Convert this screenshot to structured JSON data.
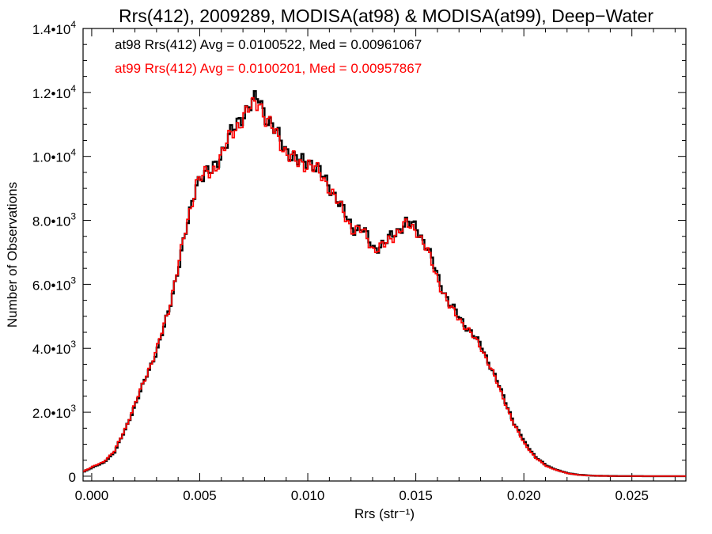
{
  "chart_data": {
    "type": "line",
    "title": "Rrs(412), 2009289, MODISA(at98) & MODISA(at99), Deep−Water",
    "xlabel": "Rrs (str⁻¹)",
    "ylabel": "Number of Observations",
    "xlim": [
      -0.0004,
      0.0275
    ],
    "ylim": [
      -150,
      14000
    ],
    "x_ticks": [
      {
        "value": 0.0,
        "label": "0.000"
      },
      {
        "value": 0.005,
        "label": "0.005"
      },
      {
        "value": 0.01,
        "label": "0.010"
      },
      {
        "value": 0.015,
        "label": "0.015"
      },
      {
        "value": 0.02,
        "label": "0.020"
      },
      {
        "value": 0.025,
        "label": "0.025"
      }
    ],
    "y_ticks": [
      {
        "value": 0,
        "label": "0"
      },
      {
        "value": 2000,
        "label": "2.0•103"
      },
      {
        "value": 4000,
        "label": "4.0•103"
      },
      {
        "value": 6000,
        "label": "6.0•103"
      },
      {
        "value": 8000,
        "label": "8.0•103"
      },
      {
        "value": 10000,
        "label": "1.0•104"
      },
      {
        "value": 12000,
        "label": "1.2•104"
      },
      {
        "value": 14000,
        "label": "1.4•104"
      }
    ],
    "legend_placement": "top-left",
    "series": [
      {
        "name": "at98",
        "label": "at98 Rrs(412) Avg = 0.0100522, Med = 0.00961067",
        "color": "#000000",
        "x": [
          -0.0004,
          0.0,
          0.0005,
          0.001,
          0.0015,
          0.002,
          0.0025,
          0.003,
          0.0035,
          0.004,
          0.0045,
          0.0048,
          0.005,
          0.0055,
          0.006,
          0.0065,
          0.007,
          0.0075,
          0.0077,
          0.008,
          0.0085,
          0.009,
          0.0095,
          0.01,
          0.0105,
          0.011,
          0.0115,
          0.012,
          0.0125,
          0.013,
          0.0135,
          0.014,
          0.0145,
          0.015,
          0.0155,
          0.016,
          0.0165,
          0.017,
          0.0175,
          0.018,
          0.0185,
          0.019,
          0.0195,
          0.02,
          0.0205,
          0.021,
          0.0215,
          0.022,
          0.0225,
          0.023,
          0.0235,
          0.024,
          0.025,
          0.026,
          0.0275
        ],
        "y": [
          150,
          280,
          420,
          750,
          1450,
          2300,
          3150,
          4000,
          5100,
          6700,
          8200,
          9200,
          9400,
          9500,
          10200,
          10800,
          11400,
          11700,
          11850,
          11300,
          10700,
          10200,
          9800,
          9900,
          9500,
          9050,
          8400,
          7800,
          7700,
          7150,
          7250,
          7650,
          7900,
          7800,
          7100,
          6200,
          5400,
          4950,
          4500,
          4050,
          3300,
          2500,
          1650,
          1050,
          600,
          330,
          190,
          90,
          45,
          20,
          10,
          5,
          3,
          1,
          0
        ]
      },
      {
        "name": "at99",
        "label": "at99 Rrs(412) Avg = 0.0100201, Med = 0.00957867",
        "color": "#ff0000",
        "x": [
          -0.0004,
          0.0,
          0.0005,
          0.001,
          0.0015,
          0.002,
          0.0025,
          0.003,
          0.0035,
          0.004,
          0.0045,
          0.0048,
          0.005,
          0.0055,
          0.006,
          0.0065,
          0.007,
          0.0075,
          0.0077,
          0.008,
          0.0085,
          0.009,
          0.0095,
          0.01,
          0.0105,
          0.011,
          0.0115,
          0.012,
          0.0125,
          0.013,
          0.0135,
          0.014,
          0.0145,
          0.015,
          0.0155,
          0.016,
          0.0165,
          0.017,
          0.0175,
          0.018,
          0.0185,
          0.019,
          0.0195,
          0.02,
          0.0205,
          0.021,
          0.0215,
          0.022,
          0.0225,
          0.023,
          0.0235,
          0.024,
          0.025,
          0.026,
          0.0275
        ],
        "y": [
          160,
          300,
          450,
          780,
          1480,
          2330,
          3180,
          4050,
          5150,
          6750,
          8250,
          9250,
          9380,
          9450,
          10150,
          10750,
          11300,
          11600,
          11750,
          11200,
          10650,
          10100,
          9750,
          9800,
          9450,
          9000,
          8350,
          7750,
          7650,
          7100,
          7200,
          7600,
          7850,
          7700,
          7000,
          6100,
          5300,
          4900,
          4450,
          4000,
          3250,
          2450,
          1600,
          1000,
          570,
          310,
          180,
          85,
          40,
          18,
          9,
          4,
          2,
          1,
          0
        ]
      }
    ]
  }
}
